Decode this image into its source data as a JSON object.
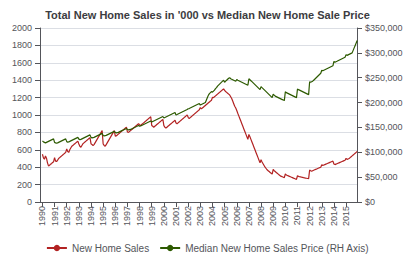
{
  "chart_data": {
    "type": "line",
    "title": "Total New Home Sales in '000 vs Median New Home Sale Price",
    "x": [
      1990,
      1990.0833333333333,
      1990.1666666666667,
      1990.25,
      1990.3333333333333,
      1990.4166666666667,
      1990.5,
      1990.5833333333333,
      1990.6666666666667,
      1990.75,
      1990.8333333333333,
      1990.9166666666667,
      1991,
      1991.0833333333333,
      1991.1666666666667,
      1991.25,
      1991.3333333333333,
      1991.4166666666667,
      1991.5,
      1991.5833333333333,
      1991.6666666666667,
      1991.75,
      1991.8333333333333,
      1991.9166666666667,
      1992,
      1992.0833333333333,
      1992.1666666666667,
      1992.25,
      1992.3333333333333,
      1992.4166666666667,
      1992.5,
      1992.5833333333333,
      1992.6666666666667,
      1992.75,
      1992.8333333333333,
      1992.9166666666667,
      1993,
      1993.0833333333333,
      1993.1666666666667,
      1993.25,
      1993.3333333333333,
      1993.4166666666667,
      1993.5,
      1993.5833333333333,
      1993.6666666666667,
      1993.75,
      1993.8333333333333,
      1993.9166666666667,
      1994,
      1994.0833333333333,
      1994.1666666666667,
      1994.25,
      1994.3333333333333,
      1994.4166666666667,
      1994.5,
      1994.5833333333333,
      1994.6666666666667,
      1994.75,
      1994.8333333333333,
      1994.9166666666667,
      1995,
      1995.0833333333333,
      1995.1666666666667,
      1995.25,
      1995.3333333333333,
      1995.4166666666667,
      1995.5,
      1995.5833333333333,
      1995.6666666666667,
      1995.75,
      1995.8333333333333,
      1995.9166666666667,
      1996,
      1996.0833333333333,
      1996.1666666666667,
      1996.25,
      1996.3333333333333,
      1996.4166666666667,
      1996.5,
      1996.5833333333333,
      1996.6666666666667,
      1996.75,
      1996.8333333333333,
      1996.9166666666667,
      1997,
      1997.0833333333333,
      1997.1666666666667,
      1997.25,
      1997.3333333333333,
      1997.4166666666667,
      1997.5,
      1997.5833333333333,
      1997.6666666666667,
      1997.75,
      1997.8333333333333,
      1997.9166666666667,
      1998,
      1998.0833333333333,
      1998.1666666666667,
      1998.25,
      1998.3333333333333,
      1998.4166666666667,
      1998.5,
      1998.5833333333333,
      1998.6666666666667,
      1998.75,
      1998.8333333333333,
      1998.9166666666667,
      1999,
      1999.0833333333333,
      1999.1666666666667,
      1999.25,
      1999.3333333333333,
      1999.4166666666667,
      1999.5,
      1999.5833333333333,
      1999.6666666666667,
      1999.75,
      1999.8333333333333,
      1999.9166666666667,
      2000,
      2000.0833333333333,
      2000.1666666666667,
      2000.25,
      2000.3333333333333,
      2000.4166666666667,
      2000.5,
      2000.5833333333333,
      2000.6666666666667,
      2000.75,
      2000.8333333333333,
      2000.9166666666667,
      2001,
      2001.0833333333333,
      2001.1666666666667,
      2001.25,
      2001.3333333333333,
      2001.4166666666667,
      2001.5,
      2001.5833333333333,
      2001.6666666666667,
      2001.75,
      2001.8333333333333,
      2001.9166666666667,
      2002,
      2002.0833333333333,
      2002.1666666666667,
      2002.25,
      2002.3333333333333,
      2002.4166666666667,
      2002.5,
      2002.5833333333333,
      2002.6666666666667,
      2002.75,
      2002.8333333333333,
      2002.9166666666667,
      2003,
      2003.0833333333333,
      2003.1666666666667,
      2003.25,
      2003.3333333333333,
      2003.4166666666667,
      2003.5,
      2003.5833333333333,
      2003.6666666666667,
      2003.75,
      2003.8333333333333,
      2003.9166666666667,
      2004,
      2004.0833333333333,
      2004.1666666666667,
      2004.25,
      2004.3333333333333,
      2004.4166666666667,
      2004.5,
      2004.5833333333333,
      2004.6666666666667,
      2004.75,
      2004.8333333333333,
      2004.9166666666667,
      2005,
      2005.0833333333333,
      2005.1666666666667,
      2005.25,
      2005.3333333333333,
      2005.4166666666667,
      2005.5,
      2005.5833333333333,
      2005.6666666666667,
      2005.75,
      2005.8333333333333,
      2005.9166666666667,
      2006,
      2006.0833333333333,
      2006.1666666666667,
      2006.25,
      2006.3333333333333,
      2006.4166666666667,
      2006.5,
      2006.5833333333333,
      2006.6666666666667,
      2006.75,
      2006.8333333333333,
      2006.9166666666667,
      2007,
      2007.0833333333333,
      2007.1666666666667,
      2007.25,
      2007.3333333333333,
      2007.4166666666667,
      2007.5,
      2007.5833333333333,
      2007.6666666666667,
      2007.75,
      2007.8333333333333,
      2007.9166666666667,
      2008,
      2008.0833333333333,
      2008.1666666666667,
      2008.25,
      2008.3333333333333,
      2008.4166666666667,
      2008.5,
      2008.5833333333333,
      2008.6666666666667,
      2008.75,
      2008.8333333333333,
      2008.9166666666667,
      2009,
      2009.0833333333333,
      2009.1666666666667,
      2009.25,
      2009.3333333333333,
      2009.4166666666667,
      2009.5,
      2009.5833333333333,
      2009.6666666666667,
      2009.75,
      2009.8333333333333,
      2009.9166666666667,
      2010,
      2010.0833333333333,
      2010.1666666666667,
      2010.25,
      2010.3333333333333,
      2010.4166666666667,
      2010.5,
      2010.5833333333333,
      2010.6666666666667,
      2010.75,
      2010.8333333333333,
      2010.9166666666667,
      2011,
      2011.0833333333333,
      2011.1666666666667,
      2011.25,
      2011.3333333333333,
      2011.4166666666667,
      2011.5,
      2011.5833333333333,
      2011.6666666666667,
      2011.75,
      2011.8333333333333,
      2011.9166666666667,
      2012,
      2012.0833333333333,
      2012.1666666666667,
      2012.25,
      2012.3333333333333,
      2012.4166666666667,
      2012.5,
      2012.5833333333333,
      2012.6666666666667,
      2012.75,
      2012.8333333333333,
      2012.9166666666667,
      2013,
      2013.0833333333333,
      2013.1666666666667,
      2013.25,
      2013.3333333333333,
      2013.4166666666667,
      2013.5,
      2013.5833333333333,
      2013.6666666666667,
      2013.75,
      2013.8333333333333,
      2013.9166666666667,
      2014,
      2014.0833333333333,
      2014.1666666666667,
      2014.25,
      2014.3333333333333,
      2014.4166666666667,
      2014.5,
      2014.5833333333333,
      2014.6666666666667,
      2014.75,
      2014.8333333333333,
      2014.9166666666667,
      2015,
      2015.0833333333333,
      2015.1666666666667,
      2015.25,
      2015.3333333333333,
      2015.4166666666667,
      2015.5,
      2015.5833333333333,
      2015.6666666666667,
      2015.75,
      2015.8333333333333,
      2015.9166666666667
    ],
    "xlim": [
      1989.8,
      2015.9
    ],
    "xticks": [
      1990,
      1991,
      1992,
      1993,
      1994,
      1995,
      1996,
      1997,
      1998,
      1999,
      2000,
      2001,
      2002,
      2003,
      2004,
      2005,
      2006,
      2007,
      2008,
      2009,
      2010,
      2011,
      2012,
      2013,
      2014,
      2015
    ],
    "ylim": [
      0,
      2000
    ],
    "yticks": [
      0,
      200,
      400,
      600,
      800,
      1000,
      1200,
      1400,
      1600,
      1800,
      2000
    ],
    "y2lim": [
      0,
      350000
    ],
    "y2ticks": [
      {
        "value": 0,
        "label": "$0"
      },
      {
        "value": 50000,
        "label": "$50,000"
      },
      {
        "value": 100000,
        "label": "$100,000"
      },
      {
        "value": 150000,
        "label": "$150,000"
      },
      {
        "value": 200000,
        "label": "$200,000"
      },
      {
        "value": 250000,
        "label": "$250,000"
      },
      {
        "value": 300000,
        "label": "$300,000"
      },
      {
        "value": 350000,
        "label": "$350,000"
      }
    ],
    "grid": true,
    "legend": "bottom",
    "series": [
      {
        "name": "New Home Sales",
        "color": "#b22222",
        "values": [
          549,
          508,
          491,
          530,
          503,
          450,
          415,
          420,
          435,
          440,
          455,
          460,
          509,
          470,
          465,
          480,
          500,
          510,
          520,
          530,
          540,
          550,
          560,
          570,
          610,
          580,
          570,
          600,
          620,
          640,
          650,
          660,
          670,
          680,
          690,
          700,
          666,
          640,
          630,
          650,
          670,
          680,
          690,
          700,
          710,
          720,
          730,
          740,
          670,
          660,
          650,
          660,
          680,
          700,
          720,
          740,
          760,
          780,
          800,
          820,
          667,
          650,
          640,
          660,
          680,
          700,
          720,
          740,
          760,
          780,
          800,
          820,
          757,
          760,
          770,
          780,
          790,
          800,
          810,
          820,
          830,
          840,
          850,
          860,
          804,
          800,
          810,
          820,
          830,
          840,
          850,
          860,
          870,
          880,
          890,
          900,
          886,
          880,
          890,
          900,
          910,
          920,
          930,
          940,
          950,
          960,
          970,
          980,
          880,
          870,
          860,
          870,
          880,
          890,
          900,
          910,
          920,
          930,
          940,
          950,
          877,
          860,
          850,
          860,
          870,
          880,
          890,
          900,
          910,
          920,
          930,
          940,
          908,
          900,
          910,
          920,
          930,
          940,
          950,
          960,
          970,
          980,
          990,
          1000,
          973,
          960,
          970,
          980,
          990,
          1000,
          1010,
          1020,
          1030,
          1040,
          1050,
          1060,
          1086,
          1070,
          1080,
          1090,
          1100,
          1110,
          1120,
          1130,
          1140,
          1150,
          1160,
          1170,
          1203,
          1200,
          1210,
          1220,
          1230,
          1240,
          1250,
          1260,
          1270,
          1280,
          1290,
          1300,
          1283,
          1270,
          1260,
          1250,
          1240,
          1230,
          1210,
          1190,
          1160,
          1130,
          1100,
          1080,
          1051,
          1020,
          990,
          960,
          930,
          900,
          870,
          840,
          810,
          780,
          750,
          720,
          776,
          750,
          720,
          690,
          660,
          630,
          600,
          570,
          540,
          510,
          480,
          450,
          485,
          460,
          440,
          420,
          400,
          385,
          370,
          360,
          350,
          340,
          330,
          320,
          375,
          360,
          350,
          340,
          330,
          320,
          310,
          300,
          295,
          290,
          285,
          280,
          323,
          310,
          305,
          300,
          295,
          290,
          285,
          280,
          275,
          270,
          265,
          260,
          302,
          295,
          290,
          288,
          285,
          283,
          280,
          278,
          275,
          273,
          270,
          268,
          368,
          360,
          355,
          360,
          365,
          370,
          375,
          380,
          385,
          390,
          395,
          400,
          429,
          420,
          425,
          430,
          435,
          440,
          445,
          450,
          455,
          460,
          465,
          470,
          437,
          430,
          435,
          440,
          445,
          450,
          455,
          460,
          465,
          470,
          475,
          480,
          501,
          490,
          495,
          500,
          510,
          520,
          530,
          540,
          550,
          560,
          570,
          580
        ]
      },
      {
        "name": "Median New Home Sales Price (RH Axis)",
        "color": "#2d5a00",
        "axis": "y2",
        "values": [
          122500,
          121000,
          120000,
          119000,
          120000,
          121000,
          122000,
          123000,
          124000,
          125000,
          126000,
          127000,
          120000,
          119000,
          118500,
          119000,
          120000,
          121000,
          122000,
          123000,
          124000,
          125000,
          126000,
          127000,
          121500,
          120500,
          121000,
          122000,
          123000,
          124000,
          125000,
          126000,
          127000,
          128000,
          129000,
          130000,
          126500,
          125500,
          126000,
          127000,
          128000,
          129000,
          130000,
          131000,
          132000,
          133000,
          134000,
          135000,
          130000,
          129000,
          129500,
          130000,
          131000,
          132000,
          133000,
          134000,
          135000,
          136000,
          137000,
          138000,
          133900,
          133000,
          133500,
          134000,
          135000,
          136000,
          137000,
          138000,
          139000,
          140000,
          141000,
          142000,
          140000,
          139000,
          139500,
          140000,
          141000,
          142000,
          143000,
          144000,
          145000,
          146000,
          147000,
          148000,
          146000,
          145000,
          145500,
          146000,
          147000,
          148000,
          149000,
          150000,
          151000,
          152000,
          153000,
          154000,
          152500,
          153000,
          154000,
          155000,
          156000,
          157000,
          158000,
          159000,
          160000,
          161000,
          162000,
          163000,
          161000,
          162000,
          163000,
          164000,
          165000,
          166000,
          167000,
          168000,
          169000,
          170000,
          171000,
          172000,
          169000,
          170000,
          171000,
          172000,
          173000,
          174000,
          175000,
          176000,
          177000,
          178000,
          179000,
          180000,
          175200,
          176000,
          177000,
          178000,
          179000,
          180000,
          181000,
          182000,
          183000,
          184000,
          185000,
          186000,
          187600,
          188000,
          189000,
          190000,
          191000,
          192000,
          193000,
          194000,
          195000,
          196000,
          197000,
          198000,
          195000,
          196000,
          197000,
          198000,
          199000,
          200000,
          205000,
          210000,
          215000,
          218000,
          220000,
          222000,
          221000,
          223000,
          225000,
          228000,
          230000,
          233000,
          235000,
          237000,
          239000,
          241000,
          243000,
          245000,
          240900,
          243000,
          245000,
          247000,
          249000,
          250000,
          248000,
          247000,
          246000,
          245000,
          244000,
          243000,
          246500,
          245000,
          244000,
          243000,
          242000,
          241000,
          240000,
          239000,
          238000,
          237000,
          236000,
          235000,
          247900,
          246000,
          244000,
          242000,
          240000,
          238000,
          236000,
          234000,
          232000,
          230000,
          228000,
          226000,
          232100,
          230000,
          228000,
          226000,
          224000,
          222000,
          220000,
          218000,
          216000,
          214000,
          212000,
          210000,
          216700,
          215000,
          213000,
          212000,
          211000,
          210000,
          209000,
          208000,
          207000,
          206000,
          205000,
          204000,
          221800,
          220000,
          219000,
          218000,
          217000,
          216000,
          215000,
          214000,
          213000,
          212000,
          211000,
          210000,
          227200,
          226000,
          225000,
          224000,
          223000,
          222000,
          221000,
          220000,
          219000,
          218000,
          217000,
          216000,
          242000,
          241000,
          242000,
          243000,
          245000,
          247000,
          249000,
          251000,
          253000,
          255000,
          257000,
          259000,
          265000,
          264000,
          265000,
          266000,
          267000,
          268000,
          269000,
          270000,
          271000,
          272000,
          273000,
          274000,
          282700,
          281000,
          282000,
          283000,
          284000,
          285000,
          286000,
          287000,
          288000,
          289000,
          290000,
          291000,
          296400,
          295000,
          296000,
          297000,
          298000,
          299000,
          300000,
          305000,
          310000,
          315000,
          320000,
          325000
        ]
      }
    ]
  }
}
